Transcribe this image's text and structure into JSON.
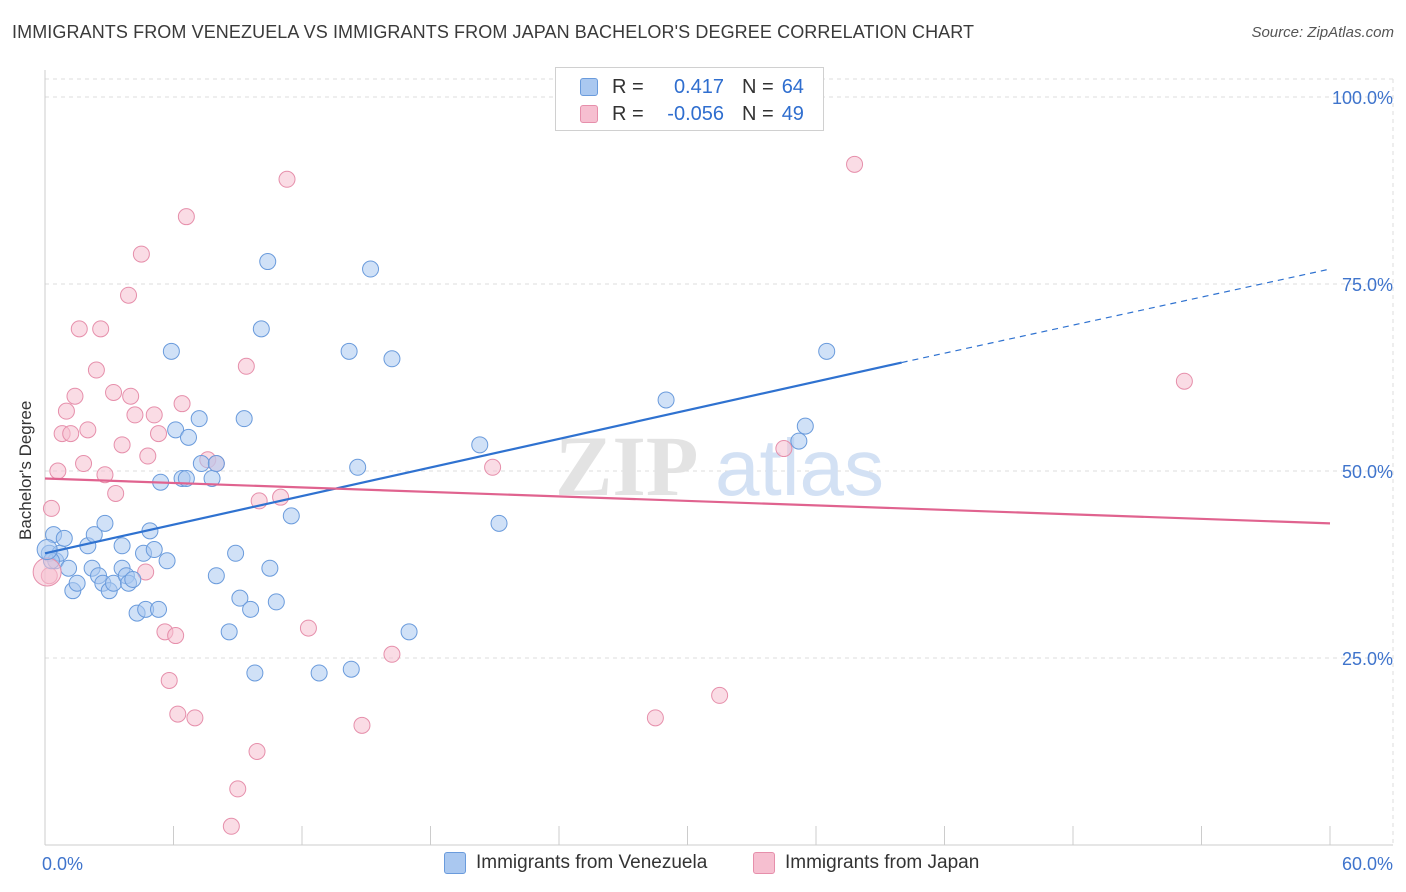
{
  "title": "IMMIGRANTS FROM VENEZUELA VS IMMIGRANTS FROM JAPAN BACHELOR'S DEGREE CORRELATION CHART",
  "source": "Source: ZipAtlas.com",
  "watermark": "ZIPatlas",
  "legend": {
    "rows": [
      {
        "r_label": "R =",
        "r_value": "0.417",
        "n_label": "N =",
        "n_value": "64"
      },
      {
        "r_label": "R =",
        "r_value": "-0.056",
        "n_label": "N =",
        "n_value": "49"
      }
    ]
  },
  "bottom_legend": {
    "series1": "Immigrants from Venezuela",
    "series2": "Immigrants from Japan"
  },
  "colors": {
    "blue_fill": "#aac8f0",
    "blue_stroke": "#6a9bdc",
    "blue_line": "#2f72d0",
    "pink_fill": "#f6bfd0",
    "pink_stroke": "#e68fab",
    "pink_line": "#e0638f",
    "tick_label": "#3f74cc",
    "grid": "#dddddd"
  },
  "chart_data": {
    "type": "scatter",
    "title": "IMMIGRANTS FROM VENEZUELA VS IMMIGRANTS FROM JAPAN BACHELOR'S DEGREE CORRELATION CHART",
    "xlabel": "",
    "ylabel": "Bachelor's Degree",
    "xlim": [
      0,
      60
    ],
    "ylim": [
      0,
      105
    ],
    "x_tick_labels": [
      "0.0%",
      "60.0%"
    ],
    "y_ticks": [
      25,
      50,
      75,
      100
    ],
    "y_tick_labels": [
      "25.0%",
      "50.0%",
      "75.0%",
      "100.0%"
    ],
    "series": [
      {
        "name": "Immigrants from Venezuela",
        "color": "blue",
        "trend": {
          "x0": 0,
          "y0": 39.0,
          "x1": 40.0,
          "y1": 64.5,
          "dashed_to_x": 60,
          "dashed_to_y": 77.0
        },
        "points": [
          [
            0.2,
            39.0
          ],
          [
            0.4,
            41.5
          ],
          [
            0.5,
            38.0
          ],
          [
            0.7,
            39.0
          ],
          [
            0.9,
            41.0
          ],
          [
            1.1,
            37.0
          ],
          [
            1.3,
            34.0
          ],
          [
            1.5,
            35.0
          ],
          [
            2.0,
            40.0
          ],
          [
            2.2,
            37.0
          ],
          [
            2.3,
            41.5
          ],
          [
            2.5,
            36.0
          ],
          [
            2.7,
            35.0
          ],
          [
            2.8,
            43.0
          ],
          [
            3.0,
            34.0
          ],
          [
            3.2,
            35.0
          ],
          [
            3.6,
            37.0
          ],
          [
            3.6,
            40.0
          ],
          [
            3.8,
            36.0
          ],
          [
            3.9,
            35.0
          ],
          [
            4.1,
            35.5
          ],
          [
            4.3,
            31.0
          ],
          [
            4.6,
            39.0
          ],
          [
            4.7,
            31.5
          ],
          [
            4.9,
            42.0
          ],
          [
            5.1,
            39.5
          ],
          [
            5.3,
            31.5
          ],
          [
            5.4,
            48.5
          ],
          [
            5.7,
            38.0
          ],
          [
            5.9,
            66.0
          ],
          [
            6.1,
            55.5
          ],
          [
            6.4,
            49.0
          ],
          [
            6.6,
            49.0
          ],
          [
            6.7,
            54.5
          ],
          [
            7.2,
            57.0
          ],
          [
            7.3,
            51.0
          ],
          [
            7.8,
            49.0
          ],
          [
            8.0,
            51.0
          ],
          [
            8.0,
            36.0
          ],
          [
            8.6,
            28.5
          ],
          [
            8.9,
            39.0
          ],
          [
            9.1,
            33.0
          ],
          [
            9.3,
            57.0
          ],
          [
            9.6,
            31.5
          ],
          [
            9.8,
            23.0
          ],
          [
            10.1,
            69.0
          ],
          [
            10.4,
            78.0
          ],
          [
            10.5,
            37.0
          ],
          [
            10.8,
            32.5
          ],
          [
            11.5,
            44.0
          ],
          [
            12.8,
            23.0
          ],
          [
            14.2,
            66.0
          ],
          [
            14.3,
            23.5
          ],
          [
            14.6,
            50.5
          ],
          [
            15.2,
            77.0
          ],
          [
            16.2,
            65.0
          ],
          [
            17.0,
            28.5
          ],
          [
            20.3,
            53.5
          ],
          [
            21.2,
            43.0
          ],
          [
            29.0,
            59.5
          ],
          [
            35.2,
            54.0
          ],
          [
            35.5,
            56.0
          ],
          [
            36.5,
            66.0
          ],
          [
            0.3,
            38.0
          ]
        ]
      },
      {
        "name": "Immigrants from Japan",
        "color": "pink",
        "trend": {
          "x0": 0,
          "y0": 49.0,
          "x1": 60,
          "y1": 43.0
        },
        "points": [
          [
            0.2,
            36.0
          ],
          [
            0.3,
            45.0
          ],
          [
            0.6,
            50.0
          ],
          [
            0.8,
            55.0
          ],
          [
            1.0,
            58.0
          ],
          [
            1.2,
            55.0
          ],
          [
            1.4,
            60.0
          ],
          [
            1.6,
            69.0
          ],
          [
            1.8,
            51.0
          ],
          [
            2.0,
            55.5
          ],
          [
            2.4,
            63.5
          ],
          [
            2.6,
            69.0
          ],
          [
            2.8,
            49.5
          ],
          [
            3.2,
            60.5
          ],
          [
            3.3,
            47.0
          ],
          [
            3.6,
            53.5
          ],
          [
            3.9,
            73.5
          ],
          [
            4.0,
            60.0
          ],
          [
            4.2,
            57.5
          ],
          [
            4.5,
            79.0
          ],
          [
            4.7,
            36.5
          ],
          [
            4.8,
            52.0
          ],
          [
            5.1,
            57.5
          ],
          [
            5.3,
            55.0
          ],
          [
            5.6,
            28.5
          ],
          [
            5.8,
            22.0
          ],
          [
            6.1,
            28.0
          ],
          [
            6.2,
            17.5
          ],
          [
            6.4,
            59.0
          ],
          [
            6.6,
            84.0
          ],
          [
            7.0,
            17.0
          ],
          [
            7.6,
            51.5
          ],
          [
            8.0,
            51.0
          ],
          [
            8.7,
            2.5
          ],
          [
            9.0,
            7.5
          ],
          [
            9.4,
            64.0
          ],
          [
            9.9,
            12.5
          ],
          [
            10.0,
            46.0
          ],
          [
            11.0,
            46.5
          ],
          [
            11.3,
            89.0
          ],
          [
            12.3,
            29.0
          ],
          [
            14.8,
            16.0
          ],
          [
            16.2,
            25.5
          ],
          [
            20.9,
            50.5
          ],
          [
            28.5,
            17.0
          ],
          [
            31.5,
            20.0
          ],
          [
            34.5,
            53.0
          ],
          [
            37.8,
            91.0
          ],
          [
            53.2,
            62.0
          ]
        ]
      }
    ]
  }
}
